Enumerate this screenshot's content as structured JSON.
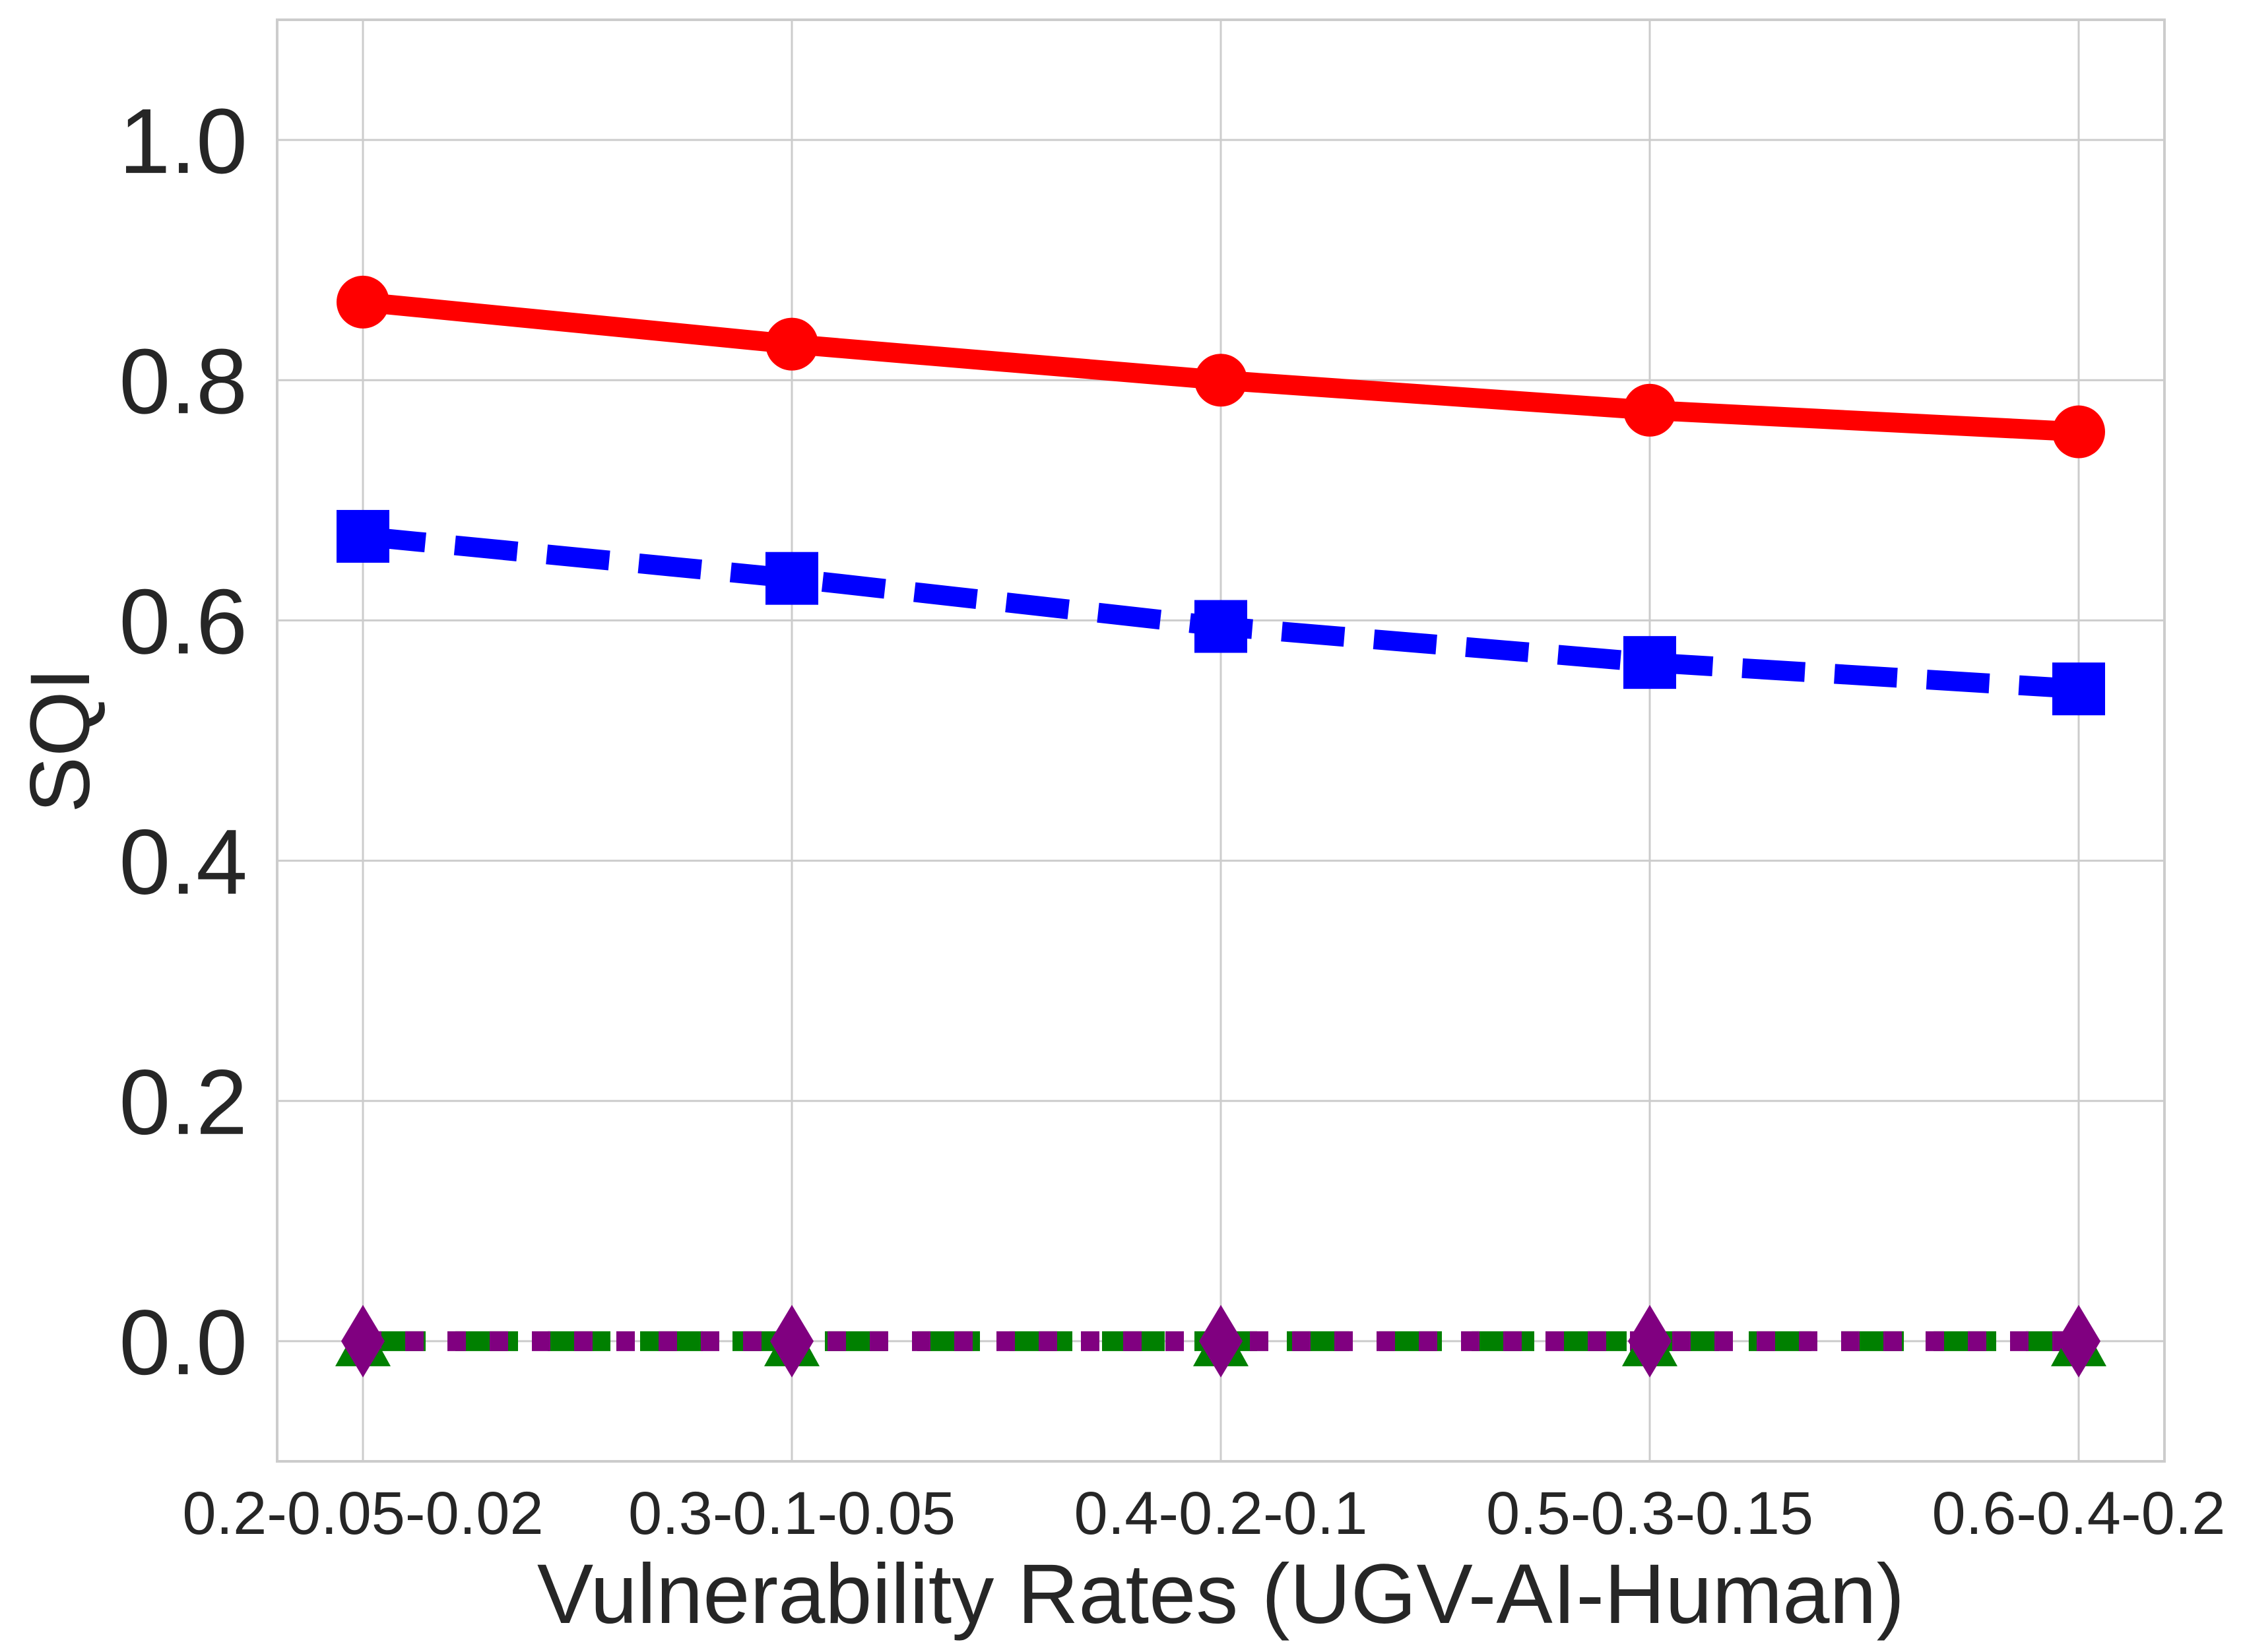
{
  "chart_data": {
    "type": "line",
    "title": "",
    "xlabel": "Vulnerability Rates (UGV-AI-Human)",
    "ylabel": "SQI",
    "categories": [
      "0.2-0.05-0.02",
      "0.3-0.1-0.05",
      "0.4-0.2-0.1",
      "0.5-0.3-0.15",
      "0.6-0.4-0.2"
    ],
    "ylim": [
      -0.1,
      1.1
    ],
    "yticks": [
      "0.0",
      "0.2",
      "0.4",
      "0.6",
      "0.8",
      "1.0"
    ],
    "grid": true,
    "legend": "none",
    "series": [
      {
        "values": [
          0.865,
          0.83,
          0.8,
          0.775,
          0.757
        ],
        "color": "#ff0000",
        "line_style": "solid",
        "marker": "circle"
      },
      {
        "values": [
          0.67,
          0.635,
          0.595,
          0.565,
          0.543
        ],
        "color": "#0000ff",
        "line_style": "dashed",
        "marker": "square"
      },
      {
        "values": [
          0.0,
          0.0,
          0.0,
          0.0,
          0.0
        ],
        "color": "#008000",
        "line_style": "dashed",
        "marker": "triangle"
      },
      {
        "values": [
          0.0,
          0.0,
          0.0,
          0.0,
          0.0
        ],
        "color": "#800080",
        "line_style": "dotted",
        "marker": "diamond"
      }
    ]
  }
}
